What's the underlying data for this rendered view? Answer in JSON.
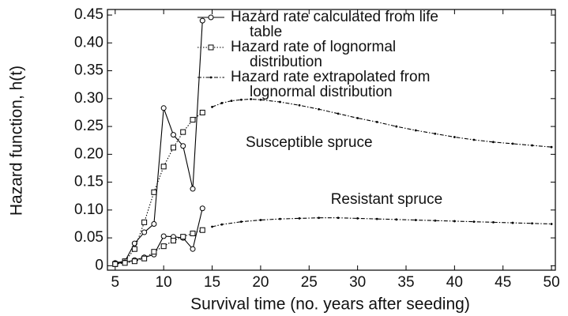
{
  "chart_data": {
    "type": "line",
    "xlabel": "Survival time (no. years after seeding)",
    "ylabel": "Hazard function, h(t)",
    "xlim": [
      4.2,
      50.4
    ],
    "xticks": [
      5,
      10,
      15,
      20,
      25,
      30,
      35,
      40,
      45,
      50
    ],
    "ylim": [
      -0.008,
      0.46
    ],
    "yticks": [
      0,
      0.05,
      {
        "value": 0.1,
        "label": "0.10"
      },
      0.15,
      {
        "value": 0.2,
        "label": "0.20"
      },
      0.25,
      {
        "value": 0.3,
        "label": "0.30"
      },
      0.35,
      {
        "value": 0.4,
        "label": "0.40"
      },
      0.45
    ],
    "legend_position": "upper right",
    "annotations": [
      {
        "text": "Susceptible spruce",
        "x": 25,
        "y": 0.22
      },
      {
        "text": "Resistant spruce",
        "x": 33,
        "y": 0.118
      }
    ],
    "series": [
      {
        "name": "Hazard rate calculated from life table",
        "color": "#000000",
        "marker": "circle",
        "line_style": "solid",
        "x": [
          5,
          6,
          7,
          8,
          9,
          10,
          11,
          12,
          13,
          14
        ],
        "values": [
          0.005,
          0.008,
          0.04,
          0.06,
          0.075,
          0.283,
          0.235,
          0.215,
          0.138,
          0.44
        ]
      },
      {
        "name": "Hazard rate of lognormal distribution",
        "color": "#000000",
        "marker": "square",
        "line_style": "dotted",
        "x": [
          5,
          6,
          7,
          8,
          9,
          10,
          11,
          12,
          13,
          14
        ],
        "values": [
          0.003,
          0.008,
          0.03,
          0.078,
          0.132,
          0.178,
          0.212,
          0.24,
          0.262,
          0.275
        ]
      },
      {
        "name": "Hazard rate extrapolated from lognormal distribution",
        "color": "#000000",
        "marker": "dot",
        "line_style": "dashdot",
        "x": [
          15,
          16,
          17,
          18,
          19,
          20,
          22,
          24,
          26,
          28,
          30,
          32,
          34,
          36,
          38,
          40,
          42,
          44,
          46,
          48,
          50
        ],
        "values": [
          0.285,
          0.292,
          0.296,
          0.298,
          0.299,
          0.298,
          0.294,
          0.288,
          0.281,
          0.273,
          0.265,
          0.258,
          0.25,
          0.243,
          0.237,
          0.231,
          0.226,
          0.222,
          0.219,
          0.216,
          0.213
        ]
      },
      {
        "color": "#000000",
        "marker": "circle",
        "line_style": "solid",
        "x": [
          5,
          6,
          7,
          8,
          9,
          10,
          11,
          12,
          13,
          14
        ],
        "values": [
          0.004,
          0.006,
          0.01,
          0.015,
          0.02,
          0.053,
          0.052,
          0.05,
          0.03,
          0.103
        ]
      },
      {
        "color": "#000000",
        "marker": "square",
        "line_style": "dotted",
        "x": [
          5,
          6,
          7,
          8,
          9,
          10,
          11,
          12,
          13,
          14
        ],
        "values": [
          0.003,
          0.005,
          0.008,
          0.013,
          0.025,
          0.035,
          0.045,
          0.052,
          0.058,
          0.064
        ]
      },
      {
        "color": "#000000",
        "marker": "dot",
        "line_style": "dashdot",
        "x": [
          15,
          16,
          18,
          20,
          22,
          24,
          26,
          28,
          30,
          32,
          34,
          36,
          38,
          40,
          42,
          44,
          46,
          48,
          50
        ],
        "values": [
          0.07,
          0.074,
          0.079,
          0.082,
          0.084,
          0.085,
          0.086,
          0.086,
          0.085,
          0.084,
          0.083,
          0.082,
          0.081,
          0.08,
          0.079,
          0.078,
          0.077,
          0.076,
          0.075
        ]
      }
    ]
  }
}
